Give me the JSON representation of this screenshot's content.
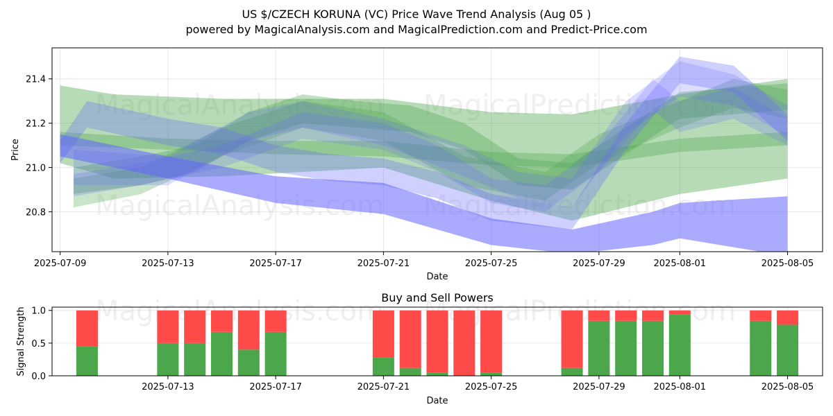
{
  "title": {
    "line1": "US $/CZECH KORUNA (VC) Price Wave Trend Analysis (Aug 05 )",
    "line2": "powered by MagicalAnalysis.com and MagicalPrediction.com and Predict-Price.com"
  },
  "watermarks": [
    "MagicalAnalysis.com",
    "MagicalPrediction.com"
  ],
  "colors": {
    "green": "#4ca64c",
    "blue": "#6464ff",
    "buy": "#4ca64c",
    "sell": "#ff4a4a"
  },
  "chart_data": [
    {
      "type": "area",
      "title": "Price Wave Trend Analysis",
      "xlabel": "Date",
      "ylabel": "Price",
      "xlim": [
        "2025-07-09",
        "2025-08-06"
      ],
      "ylim": [
        20.62,
        21.54
      ],
      "x_ticks": [
        "2025-07-09",
        "2025-07-13",
        "2025-07-17",
        "2025-07-21",
        "2025-07-25",
        "2025-07-29",
        "2025-08-01",
        "2025-08-05"
      ],
      "y_ticks": [
        20.8,
        21.0,
        21.2,
        21.4
      ],
      "grid": true,
      "series": [
        {
          "name": "green-band-1",
          "color": "green",
          "opacity": 0.4,
          "x": [
            "2025-07-09",
            "2025-07-11",
            "2025-07-15",
            "2025-07-21",
            "2025-07-25",
            "2025-07-28",
            "2025-08-01",
            "2025-08-05"
          ],
          "upper": [
            21.37,
            21.33,
            21.31,
            21.31,
            21.25,
            21.24,
            21.33,
            21.4
          ],
          "lower": [
            21.02,
            20.95,
            20.96,
            21.0,
            20.85,
            20.76,
            20.88,
            20.95
          ]
        },
        {
          "name": "green-band-2",
          "color": "green",
          "opacity": 0.35,
          "x": [
            "2025-07-09",
            "2025-07-13",
            "2025-07-17",
            "2025-07-21",
            "2025-07-25",
            "2025-07-28",
            "2025-08-01",
            "2025-08-05"
          ],
          "upper": [
            21.16,
            21.13,
            21.12,
            21.12,
            21.07,
            21.06,
            21.13,
            21.16
          ],
          "lower": [
            21.1,
            21.08,
            21.06,
            21.05,
            21.01,
            21.0,
            21.07,
            21.1
          ]
        },
        {
          "name": "green-wave-1",
          "color": "green",
          "opacity": 0.35,
          "x": [
            "2025-07-09.5",
            "2025-07-12",
            "2025-07-14",
            "2025-07-16",
            "2025-07-18",
            "2025-07-20",
            "2025-07-22",
            "2025-07-24",
            "2025-07-26",
            "2025-07-28",
            "2025-07-30",
            "2025-08-01",
            "2025-08-03",
            "2025-08-05"
          ],
          "upper": [
            21.0,
            21.05,
            21.1,
            21.25,
            21.33,
            21.3,
            21.28,
            21.2,
            21.04,
            21.02,
            21.18,
            21.34,
            21.36,
            21.38
          ],
          "lower": [
            20.88,
            20.92,
            20.98,
            21.12,
            21.2,
            21.18,
            21.16,
            21.08,
            20.92,
            20.9,
            21.06,
            21.22,
            21.24,
            21.26
          ]
        },
        {
          "name": "green-wave-2",
          "color": "green",
          "opacity": 0.3,
          "x": [
            "2025-07-09.5",
            "2025-07-12",
            "2025-07-15",
            "2025-07-18",
            "2025-07-21",
            "2025-07-24",
            "2025-07-27",
            "2025-07-29",
            "2025-08-01",
            "2025-08-03",
            "2025-08-05"
          ],
          "upper": [
            20.95,
            21.0,
            21.18,
            21.3,
            21.25,
            21.05,
            20.98,
            21.15,
            21.3,
            21.4,
            21.35
          ],
          "lower": [
            20.82,
            20.88,
            21.05,
            21.18,
            21.12,
            20.92,
            20.85,
            21.02,
            21.18,
            21.27,
            21.22
          ]
        },
        {
          "name": "blue-band-1",
          "color": "blue",
          "opacity": 0.55,
          "x": [
            "2025-07-09",
            "2025-07-13",
            "2025-07-17",
            "2025-07-21",
            "2025-07-25",
            "2025-07-28",
            "2025-07-31",
            "2025-08-01",
            "2025-08-05"
          ],
          "upper": [
            21.15,
            21.05,
            20.96,
            20.93,
            20.77,
            20.72,
            20.8,
            20.84,
            20.87
          ],
          "lower": [
            21.05,
            20.95,
            20.84,
            20.79,
            20.65,
            20.61,
            20.65,
            20.68,
            20.6
          ]
        },
        {
          "name": "blue-wave-1",
          "color": "blue",
          "opacity": 0.3,
          "x": [
            "2025-07-09",
            "2025-07-10",
            "2025-07-13",
            "2025-07-15",
            "2025-07-17",
            "2025-07-19",
            "2025-07-21",
            "2025-07-23",
            "2025-07-25",
            "2025-07-28",
            "2025-07-30",
            "2025-08-01",
            "2025-08-03",
            "2025-08-05"
          ],
          "upper": [
            21.12,
            21.3,
            21.22,
            21.18,
            21.1,
            21.06,
            21.04,
            20.98,
            20.88,
            20.82,
            21.2,
            21.5,
            21.46,
            21.24
          ],
          "lower": [
            21.02,
            21.18,
            21.1,
            21.06,
            20.98,
            20.94,
            20.92,
            20.86,
            20.76,
            20.72,
            21.08,
            21.38,
            21.34,
            21.12
          ]
        },
        {
          "name": "blue-wave-2",
          "color": "blue",
          "opacity": 0.22,
          "x": [
            "2025-07-09.5",
            "2025-07-13",
            "2025-07-16",
            "2025-07-18",
            "2025-07-21",
            "2025-07-24",
            "2025-07-26",
            "2025-07-28",
            "2025-07-30",
            "2025-08-01",
            "2025-08-03",
            "2025-08-05"
          ],
          "upper": [
            21.08,
            21.05,
            21.25,
            21.3,
            21.22,
            21.1,
            20.98,
            20.95,
            21.3,
            21.48,
            21.42,
            21.28
          ],
          "lower": [
            20.92,
            20.92,
            21.12,
            21.18,
            21.1,
            20.96,
            20.86,
            20.82,
            21.15,
            21.32,
            21.28,
            21.14
          ]
        },
        {
          "name": "blue-wave-3",
          "color": "blue",
          "opacity": 0.22,
          "x": [
            "2025-07-09.5",
            "2025-07-12",
            "2025-07-15",
            "2025-07-18",
            "2025-07-21",
            "2025-07-23",
            "2025-07-25",
            "2025-07-27",
            "2025-07-29",
            "2025-07-31",
            "2025-08-01",
            "2025-08-03",
            "2025-08-05"
          ],
          "upper": [
            20.97,
            21.02,
            21.1,
            21.25,
            21.2,
            21.1,
            20.95,
            20.92,
            21.1,
            21.4,
            21.3,
            21.36,
            21.22
          ],
          "lower": [
            20.87,
            20.92,
            21.0,
            21.13,
            21.08,
            20.98,
            20.84,
            20.8,
            20.98,
            21.26,
            21.16,
            21.22,
            21.1
          ]
        }
      ]
    },
    {
      "type": "bar",
      "title": "Buy and Sell Powers",
      "xlabel": "Date",
      "ylabel": "Signal Strength",
      "xlim": [
        "2025-07-09",
        "2025-08-06"
      ],
      "ylim": [
        0,
        1.05
      ],
      "x_ticks": [
        "2025-07-13",
        "2025-07-17",
        "2025-07-21",
        "2025-07-25",
        "2025-07-29",
        "2025-08-01",
        "2025-08-05"
      ],
      "y_ticks": [
        "0.0",
        "0.5",
        "1.0"
      ],
      "grid": true,
      "categories": [
        "2025-07-10",
        "2025-07-13",
        "2025-07-14",
        "2025-07-15",
        "2025-07-16",
        "2025-07-17",
        "2025-07-21",
        "2025-07-22",
        "2025-07-23",
        "2025-07-24",
        "2025-07-25",
        "2025-07-28",
        "2025-07-29",
        "2025-07-30",
        "2025-07-31",
        "2025-08-01",
        "2025-08-04",
        "2025-08-05"
      ],
      "series": [
        {
          "name": "Buy",
          "color": "buy",
          "values": [
            0.45,
            0.5,
            0.5,
            0.67,
            0.4,
            0.67,
            0.28,
            0.12,
            0.05,
            0.0,
            0.05,
            0.12,
            0.84,
            0.84,
            0.84,
            0.94,
            0.84,
            0.78
          ]
        },
        {
          "name": "Sell",
          "color": "sell",
          "values": [
            0.55,
            0.5,
            0.5,
            0.33,
            0.6,
            0.33,
            0.72,
            0.88,
            0.95,
            1.0,
            0.95,
            0.88,
            0.16,
            0.16,
            0.16,
            0.06,
            0.16,
            0.22
          ]
        }
      ]
    }
  ]
}
